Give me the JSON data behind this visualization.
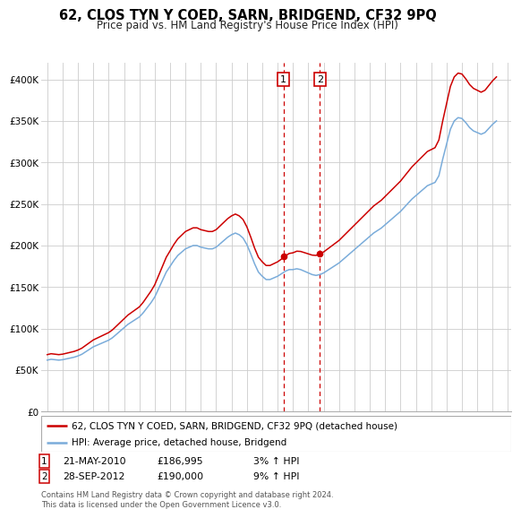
{
  "title": "62, CLOS TYN Y COED, SARN, BRIDGEND, CF32 9PQ",
  "subtitle": "Price paid vs. HM Land Registry's House Price Index (HPI)",
  "hpi_label": "HPI: Average price, detached house, Bridgend",
  "property_label": "62, CLOS TYN Y COED, SARN, BRIDGEND, CF32 9PQ (detached house)",
  "sale1_date": "21-MAY-2010",
  "sale1_price": "£186,995",
  "sale1_hpi": "3% ↑ HPI",
  "sale2_date": "28-SEP-2012",
  "sale2_price": "£190,000",
  "sale2_hpi": "9% ↑ HPI",
  "footnote": "Contains HM Land Registry data © Crown copyright and database right 2024.\nThis data is licensed under the Open Government Licence v3.0.",
  "ylim": [
    0,
    420000
  ],
  "yticks": [
    0,
    50000,
    100000,
    150000,
    200000,
    250000,
    300000,
    350000,
    400000
  ],
  "property_color": "#cc0000",
  "hpi_color": "#7aacda",
  "background_color": "#ffffff",
  "grid_color": "#cccccc",
  "sale1_x": 2010.38,
  "sale2_x": 2012.75,
  "vline_color": "#cc0000",
  "years": [
    1995.0,
    1995.25,
    1995.5,
    1995.75,
    1996.0,
    1996.25,
    1996.5,
    1996.75,
    1997.0,
    1997.25,
    1997.5,
    1997.75,
    1998.0,
    1998.25,
    1998.5,
    1998.75,
    1999.0,
    1999.25,
    1999.5,
    1999.75,
    2000.0,
    2000.25,
    2000.5,
    2000.75,
    2001.0,
    2001.25,
    2001.5,
    2001.75,
    2002.0,
    2002.25,
    2002.5,
    2002.75,
    2003.0,
    2003.25,
    2003.5,
    2003.75,
    2004.0,
    2004.25,
    2004.5,
    2004.75,
    2005.0,
    2005.25,
    2005.5,
    2005.75,
    2006.0,
    2006.25,
    2006.5,
    2006.75,
    2007.0,
    2007.25,
    2007.5,
    2007.75,
    2008.0,
    2008.25,
    2008.5,
    2008.75,
    2009.0,
    2009.25,
    2009.5,
    2009.75,
    2010.0,
    2010.25,
    2010.5,
    2010.75,
    2011.0,
    2011.25,
    2011.5,
    2011.75,
    2012.0,
    2012.25,
    2012.5,
    2012.75,
    2013.0,
    2013.25,
    2013.5,
    2013.75,
    2014.0,
    2014.25,
    2014.5,
    2014.75,
    2015.0,
    2015.25,
    2015.5,
    2015.75,
    2016.0,
    2016.25,
    2016.5,
    2016.75,
    2017.0,
    2017.25,
    2017.5,
    2017.75,
    2018.0,
    2018.25,
    2018.5,
    2018.75,
    2019.0,
    2019.25,
    2019.5,
    2019.75,
    2020.0,
    2020.25,
    2020.5,
    2020.75,
    2021.0,
    2021.25,
    2021.5,
    2021.75,
    2022.0,
    2022.25,
    2022.5,
    2022.75,
    2023.0,
    2023.25,
    2023.5,
    2023.75,
    2024.0,
    2024.25
  ],
  "hpi_values": [
    62000,
    63000,
    62500,
    62000,
    62500,
    63500,
    64500,
    65500,
    67000,
    69000,
    72000,
    75000,
    78000,
    80000,
    82000,
    84000,
    86000,
    89000,
    93000,
    97000,
    101000,
    105000,
    108000,
    111000,
    114000,
    119000,
    125000,
    131000,
    138000,
    148000,
    158000,
    168000,
    175000,
    182000,
    188000,
    192000,
    196000,
    198000,
    200000,
    200000,
    198000,
    197000,
    196000,
    196000,
    198000,
    202000,
    206000,
    210000,
    213000,
    215000,
    213000,
    209000,
    201000,
    190000,
    178000,
    168000,
    163000,
    159000,
    159000,
    161000,
    163000,
    166000,
    169000,
    171000,
    171000,
    172000,
    171000,
    169000,
    167000,
    165000,
    164000,
    165000,
    167000,
    170000,
    173000,
    176000,
    179000,
    183000,
    187000,
    191000,
    195000,
    199000,
    203000,
    207000,
    211000,
    215000,
    218000,
    221000,
    225000,
    229000,
    233000,
    237000,
    241000,
    246000,
    251000,
    256000,
    260000,
    264000,
    268000,
    272000,
    274000,
    276000,
    284000,
    304000,
    322000,
    340000,
    350000,
    354000,
    353000,
    348000,
    342000,
    338000,
    336000,
    334000,
    336000,
    341000,
    346000,
    350000
  ],
  "prop_scale1": 1.097,
  "prop_scale2": 1.085
}
